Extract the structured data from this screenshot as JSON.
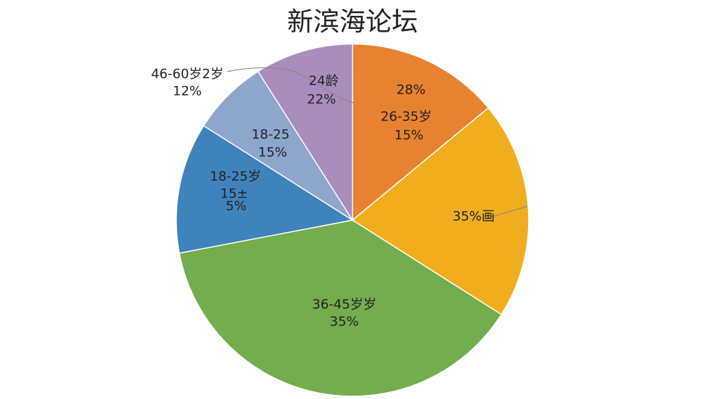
{
  "chart_data": {
    "type": "pie",
    "title": "新滨海论坛",
    "values": [
      14,
      20,
      38,
      12,
      7,
      9
    ],
    "colors": [
      "#e8822f",
      "#f0ae1f",
      "#72ad4e",
      "#3f83bc",
      "#8ea6cd",
      "#a88ebc"
    ],
    "annotations": [
      "46-60岁2岁",
      "12%",
      "24龄",
      "22%",
      "28%",
      "26-35岁",
      "15%",
      "18-25",
      "15%",
      "18-25岁",
      "15±",
      "5%",
      "35%画",
      "36-45岁岁",
      "35%"
    ]
  }
}
